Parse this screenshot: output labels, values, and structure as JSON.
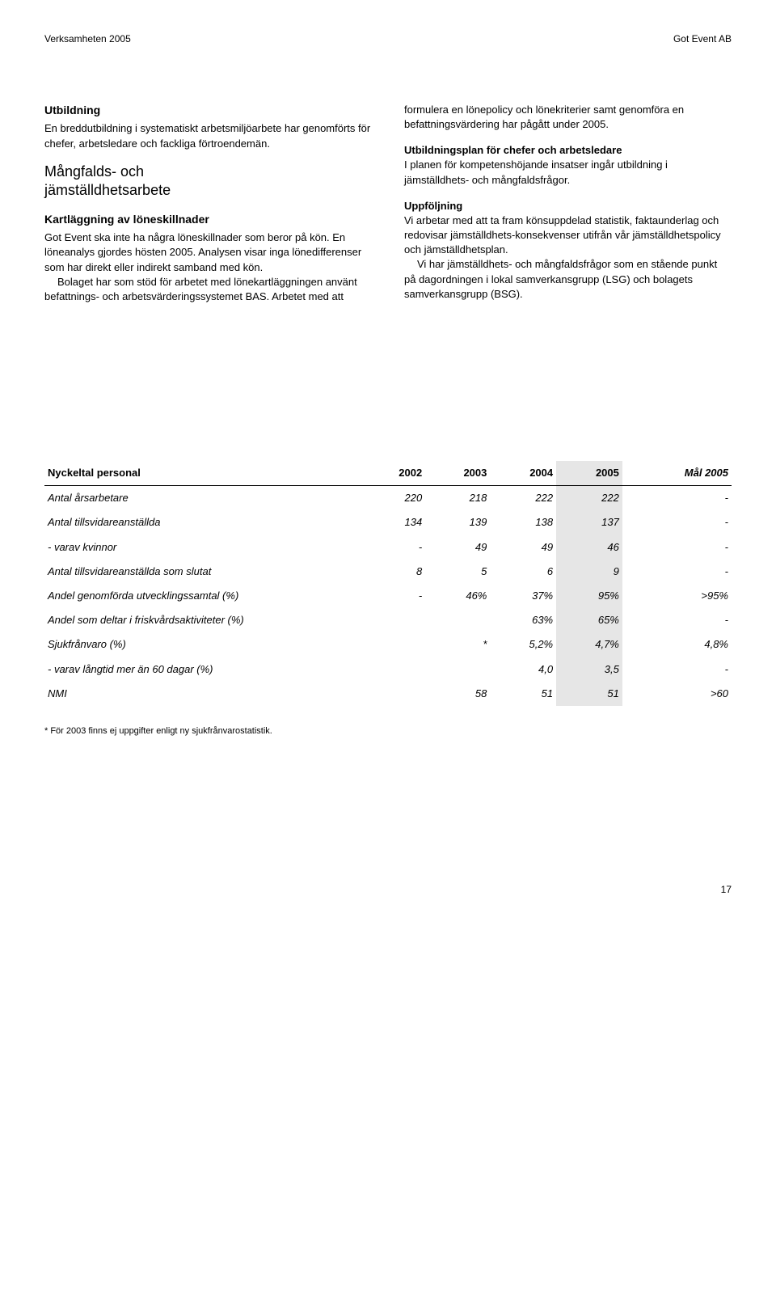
{
  "header": {
    "left": "Verksamheten 2005",
    "right": "Got Event AB"
  },
  "left_col": {
    "h1": "Utbildning",
    "p1": "En breddutbildning i systematiskt arbetsmiljöarbete har genomförts för chefer, arbetsledare och fackliga förtroendemän.",
    "big1": "Mångfalds- och",
    "big2": "jämställdhetsarbete",
    "h2": "Kartläggning av löneskillnader",
    "p2": "Got Event ska inte ha några löneskillnader som beror på kön. En löneanalys gjordes hösten 2005. Analysen visar inga lönedifferenser som har direkt eller indirekt samband med kön.",
    "p3": "Bolaget har som stöd för arbetet med lönekartläggningen använt befattnings- och arbetsvärderingssystemet BAS. Arbetet med att"
  },
  "right_col": {
    "p1": "formulera en lönepolicy och lönekriterier samt genomföra en befattningsvärdering har pågått under 2005.",
    "h1": "Utbildningsplan för chefer och arbetsledare",
    "p2": "I planen för kompetenshöjande insatser ingår utbildning i jämställdhets- och mångfaldsfrågor.",
    "h2": "Uppföljning",
    "p3": "Vi arbetar med att ta fram könsuppdelad statistik, faktaunderlag och redovisar jämställdhets-konsekvenser utifrån vår jämställdhetspolicy och jämställdhetsplan.",
    "p4": "Vi har jämställdhets- och mångfaldsfrågor som en stående punkt på dagordningen i lokal samverkansgrupp (LSG) och bolagets samverkansgrupp (BSG)."
  },
  "table": {
    "title": "Nyckeltal personal",
    "headers": [
      "2002",
      "2003",
      "2004",
      "2005",
      "Mål 2005"
    ],
    "rows": [
      {
        "label": "Antal årsarbetare",
        "cells": [
          "220",
          "218",
          "222",
          "222",
          "-"
        ]
      },
      {
        "label": "Antal tillsvidareanställda",
        "cells": [
          "134",
          "139",
          "138",
          "137",
          "-"
        ]
      },
      {
        "label": "- varav kvinnor",
        "cells": [
          "-",
          "49",
          "49",
          "46",
          "-"
        ]
      },
      {
        "label": "Antal tillsvidareanställda som slutat",
        "cells": [
          "8",
          "5",
          "6",
          "9",
          "-"
        ]
      },
      {
        "label": "Andel genomförda utvecklingssamtal (%)",
        "cells": [
          "-",
          "46%",
          "37%",
          "95%",
          ">95%"
        ]
      },
      {
        "label": "Andel som deltar i friskvårdsaktiviteter (%)",
        "cells": [
          "",
          "",
          "63%",
          "65%",
          "-"
        ]
      },
      {
        "label": "Sjukfrånvaro (%)",
        "cells": [
          "",
          "*",
          "5,2%",
          "4,7%",
          "4,8%"
        ]
      },
      {
        "label": "- varav långtid mer än 60 dagar (%)",
        "cells": [
          "",
          "",
          "4,0",
          "3,5",
          "-"
        ]
      },
      {
        "label": "NMI",
        "cells": [
          "",
          "58",
          "51",
          "51",
          ">60"
        ]
      }
    ],
    "shaded_col_index": 3,
    "col_widths": [
      "46%",
      "10%",
      "10%",
      "10%",
      "12%",
      "12%"
    ],
    "shade_color": "#e6e6e6"
  },
  "footnote": "* För 2003 finns ej uppgifter enligt ny sjukfrånvarostatistik.",
  "pagenum": "17"
}
